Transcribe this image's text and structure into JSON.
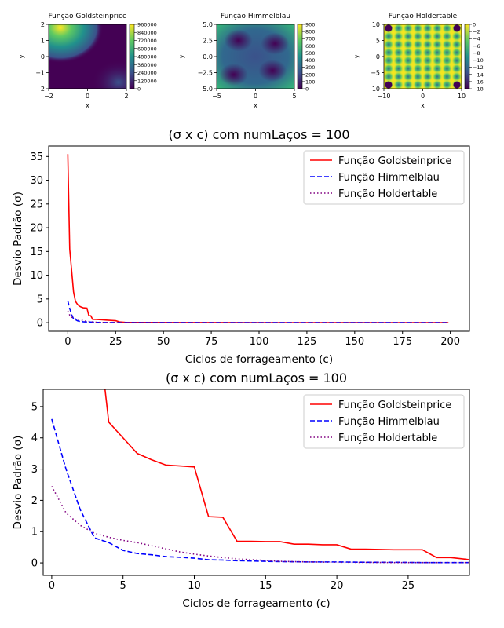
{
  "chart_data": [
    {
      "type": "heatmap",
      "title": "Função Goldsteinprice",
      "xlabel": "x",
      "ylabel": "y",
      "xlim": [
        -2,
        2
      ],
      "ylim": [
        -2,
        2
      ],
      "xticks": [
        "−2",
        "0",
        "2"
      ],
      "yticks": [
        "2",
        "1",
        "0",
        "−1",
        "−2"
      ],
      "colorbar_ticks": [
        "960000",
        "840000",
        "720000",
        "600000",
        "480000",
        "360000",
        "240000",
        "120000",
        "0"
      ],
      "colormap": "viridis"
    },
    {
      "type": "heatmap",
      "title": "Função Himmelblau",
      "xlabel": "x",
      "ylabel": "y",
      "xlim": [
        -5,
        5
      ],
      "ylim": [
        -5,
        5
      ],
      "xticks": [
        "−5",
        "0",
        "5"
      ],
      "yticks": [
        "5.0",
        "2.5",
        "0.0",
        "−2.5",
        "−5.0"
      ],
      "colorbar_ticks": [
        "900",
        "800",
        "700",
        "600",
        "500",
        "400",
        "300",
        "200",
        "100",
        "0"
      ],
      "colormap": "viridis"
    },
    {
      "type": "heatmap",
      "title": "Função Holdertable",
      "xlabel": "x",
      "ylabel": "y",
      "xlim": [
        -10,
        10
      ],
      "ylim": [
        -10,
        10
      ],
      "xticks": [
        "−10",
        "0",
        "10"
      ],
      "yticks": [
        "10",
        "5",
        "0",
        "−5",
        "−10"
      ],
      "colorbar_ticks": [
        "0",
        "−2",
        "−4",
        "−6",
        "−8",
        "−10",
        "−12",
        "−14",
        "−16",
        "−18"
      ],
      "colormap": "viridis"
    },
    {
      "type": "line",
      "title": "(σ x c) com numLaços = 100",
      "xlabel": "Ciclos de forrageamento (c)",
      "ylabel": "Desvio Padrão (σ)",
      "xlim": [
        -10,
        210
      ],
      "ylim": [
        -1.8,
        37.2
      ],
      "xticks": [
        "0",
        "25",
        "50",
        "75",
        "100",
        "125",
        "150",
        "175",
        "200"
      ],
      "yticks": [
        "0",
        "5",
        "10",
        "15",
        "20",
        "25",
        "30",
        "35"
      ],
      "legend": "top-right",
      "series": [
        {
          "name": "Função Goldsteinprice",
          "color": "#ff0000",
          "style": "solid",
          "x": [
            0,
            1,
            2,
            3,
            4,
            5,
            6,
            7,
            8,
            10,
            11,
            12,
            13,
            15,
            20,
            25,
            26,
            27,
            30,
            40,
            60,
            100,
            150,
            199
          ],
          "y": [
            35.5,
            15.5,
            11,
            6.5,
            4.5,
            3.9,
            3.5,
            3.3,
            3.15,
            3.08,
            1.5,
            1.48,
            0.7,
            0.68,
            0.55,
            0.42,
            0.3,
            0.15,
            0.08,
            0.05,
            0.03,
            0.02,
            0.02,
            0.02
          ]
        },
        {
          "name": "Função Himmelblau",
          "color": "#0000ff",
          "style": "dashed",
          "x": [
            0,
            1,
            2,
            3,
            4,
            5,
            6,
            8,
            10,
            15,
            20,
            30,
            50,
            100,
            150,
            199
          ],
          "y": [
            4.6,
            3.0,
            1.7,
            0.8,
            0.65,
            0.4,
            0.3,
            0.2,
            0.15,
            0.06,
            0.03,
            0.01,
            0.01,
            0.01,
            0.01,
            0.01
          ]
        },
        {
          "name": "Função Holdertable",
          "color": "#800080",
          "style": "dotted",
          "x": [
            0,
            1,
            2,
            3,
            4,
            6,
            8,
            10,
            15,
            20,
            30,
            50,
            100,
            150,
            199
          ],
          "y": [
            2.45,
            1.6,
            1.2,
            0.95,
            0.82,
            0.65,
            0.45,
            0.3,
            0.08,
            0.03,
            0.01,
            0.01,
            0.01,
            0.01,
            0.01
          ]
        }
      ]
    },
    {
      "type": "line",
      "title": "(σ x c) com numLaços = 100",
      "xlabel": "Ciclos de forrageamento (c)",
      "ylabel": "Desvio Padrão (σ)",
      "xlim": [
        -0.6,
        29.3
      ],
      "ylim": [
        -0.4,
        5.55
      ],
      "xticks": [
        "0",
        "5",
        "10",
        "15",
        "20",
        "25"
      ],
      "yticks": [
        "0",
        "1",
        "2",
        "3",
        "4",
        "5"
      ],
      "legend": "top-right",
      "series": [
        {
          "name": "Função Goldsteinprice",
          "color": "#ff0000",
          "style": "solid",
          "x": [
            3,
            4,
            5,
            6,
            7,
            8,
            9,
            10,
            11,
            12,
            13,
            14,
            15,
            16,
            17,
            18,
            19,
            20,
            21,
            22,
            23,
            24,
            25,
            26,
            27,
            28,
            29,
            29.3
          ],
          "y": [
            8.5,
            4.5,
            4.0,
            3.5,
            3.3,
            3.13,
            3.1,
            3.07,
            1.48,
            1.46,
            0.69,
            0.69,
            0.68,
            0.68,
            0.6,
            0.6,
            0.58,
            0.58,
            0.44,
            0.44,
            0.43,
            0.42,
            0.42,
            0.42,
            0.17,
            0.17,
            0.12,
            0.1
          ]
        },
        {
          "name": "Função Himmelblau",
          "color": "#0000ff",
          "style": "dashed",
          "x": [
            0,
            1,
            2,
            3,
            4,
            5,
            6,
            7,
            8,
            9,
            10,
            11,
            12,
            13,
            14,
            15,
            16,
            18,
            20,
            22,
            24,
            26,
            28,
            29.3
          ],
          "y": [
            4.6,
            3.0,
            1.7,
            0.8,
            0.65,
            0.4,
            0.3,
            0.26,
            0.2,
            0.18,
            0.15,
            0.1,
            0.09,
            0.07,
            0.06,
            0.05,
            0.04,
            0.03,
            0.03,
            0.02,
            0.02,
            0.01,
            0.01,
            0.01
          ]
        },
        {
          "name": "Função Holdertable",
          "color": "#800080",
          "style": "dotted",
          "x": [
            0,
            1,
            2,
            3,
            4,
            5,
            6,
            7,
            8,
            9,
            10,
            11,
            12,
            13,
            14,
            15,
            16,
            18,
            20,
            24,
            29.3
          ],
          "y": [
            2.45,
            1.6,
            1.2,
            0.95,
            0.82,
            0.72,
            0.65,
            0.55,
            0.45,
            0.35,
            0.28,
            0.22,
            0.17,
            0.13,
            0.1,
            0.08,
            0.05,
            0.03,
            0.02,
            0.01,
            0.01
          ]
        }
      ]
    }
  ]
}
